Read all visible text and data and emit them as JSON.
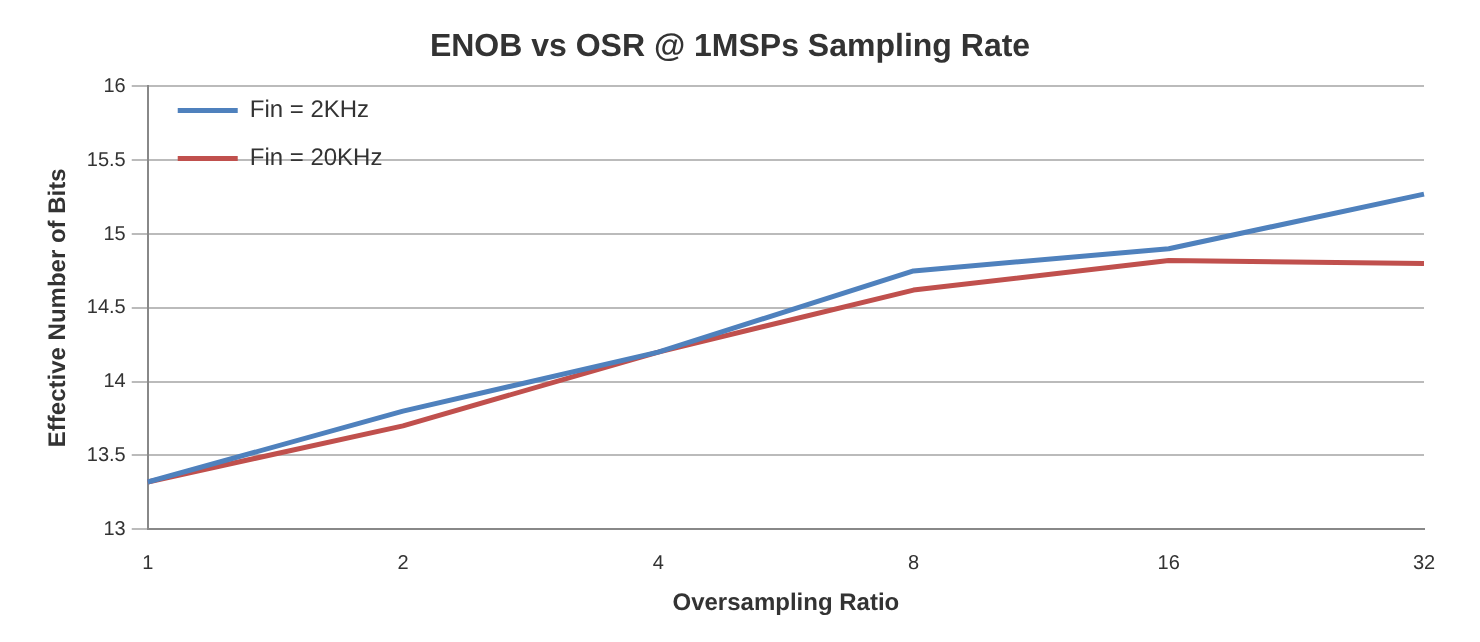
{
  "chart_data": {
    "type": "line",
    "title": "ENOB vs OSR @ 1MSPs Sampling Rate",
    "xlabel": "Oversampling Ratio",
    "ylabel": "Effective Number of Bits",
    "categories": [
      "1",
      "2",
      "4",
      "8",
      "16",
      "32"
    ],
    "series": [
      {
        "name": "Fin = 2KHz",
        "color": "#4f81bd",
        "values": [
          13.32,
          13.8,
          14.2,
          14.75,
          14.9,
          15.27
        ]
      },
      {
        "name": "Fin = 20KHz",
        "color": "#c0504d",
        "values": [
          13.32,
          13.7,
          14.2,
          14.62,
          14.82,
          14.8
        ]
      }
    ],
    "ylim": [
      13,
      16
    ],
    "yticks": [
      13,
      13.5,
      14,
      14.5,
      15,
      15.5,
      16
    ],
    "grid": "y",
    "legend": "top left",
    "marker": "none"
  }
}
